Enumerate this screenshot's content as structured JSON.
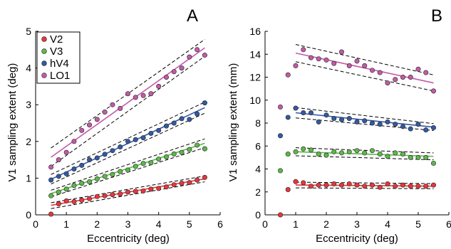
{
  "chart_data": [
    {
      "type": "scatter",
      "panel_label": "A",
      "xlabel": "Eccentricity (deg)",
      "ylabel": "V1 sampling extent (deg)",
      "xlim": [
        0,
        6
      ],
      "ylim": [
        0,
        5
      ],
      "xticks": [
        0,
        1,
        2,
        3,
        4,
        5,
        6
      ],
      "yticks": [
        0,
        1,
        2,
        3,
        4,
        5
      ],
      "legend_position": "top-left",
      "series": [
        {
          "name": "V2",
          "color": "#e8363c",
          "x": [
            0.5,
            0.75,
            1.0,
            1.25,
            1.5,
            1.75,
            2.0,
            2.25,
            2.5,
            2.75,
            3.0,
            3.25,
            3.5,
            3.75,
            4.0,
            4.25,
            4.5,
            4.75,
            5.0,
            5.25,
            5.5
          ],
          "y": [
            0.02,
            0.3,
            0.38,
            0.36,
            0.4,
            0.44,
            0.5,
            0.52,
            0.55,
            0.57,
            0.62,
            0.64,
            0.65,
            0.7,
            0.72,
            0.76,
            0.82,
            0.86,
            0.88,
            0.95,
            1.02
          ],
          "fit": {
            "x": [
              0.5,
              5.5
            ],
            "y": [
              0.26,
              0.98
            ]
          },
          "ci_upper": {
            "x": [
              0.5,
              5.5
            ],
            "y": [
              0.33,
              1.06
            ]
          },
          "ci_lower": {
            "x": [
              0.5,
              5.5
            ],
            "y": [
              0.17,
              0.9
            ]
          }
        },
        {
          "name": "V3",
          "color": "#5cb84a",
          "x": [
            0.5,
            0.75,
            1.0,
            1.25,
            1.5,
            1.75,
            2.0,
            2.25,
            2.5,
            2.75,
            3.0,
            3.25,
            3.5,
            3.75,
            4.0,
            4.25,
            4.5,
            4.75,
            5.0,
            5.25,
            5.5
          ],
          "y": [
            0.52,
            0.62,
            0.7,
            0.8,
            0.86,
            0.9,
            0.98,
            1.05,
            1.1,
            1.18,
            1.22,
            1.32,
            1.4,
            1.42,
            1.52,
            1.58,
            1.66,
            1.7,
            1.78,
            1.9,
            1.8
          ],
          "fit": {
            "x": [
              0.5,
              5.5
            ],
            "y": [
              0.58,
              1.95
            ]
          },
          "ci_upper": {
            "x": [
              0.5,
              5.5
            ],
            "y": [
              0.67,
              2.07
            ]
          },
          "ci_lower": {
            "x": [
              0.5,
              5.5
            ],
            "y": [
              0.49,
              1.83
            ]
          }
        },
        {
          "name": "hV4",
          "color": "#3459a3",
          "x": [
            0.5,
            0.75,
            1.0,
            1.25,
            1.5,
            1.75,
            2.0,
            2.25,
            2.5,
            2.75,
            3.0,
            3.25,
            3.5,
            3.75,
            4.0,
            4.25,
            4.5,
            4.75,
            5.0,
            5.25,
            5.5
          ],
          "y": [
            0.95,
            1.05,
            1.12,
            1.25,
            1.35,
            1.5,
            1.55,
            1.65,
            1.75,
            1.85,
            2.0,
            2.05,
            2.1,
            2.22,
            2.3,
            2.42,
            2.5,
            2.62,
            2.6,
            2.75,
            3.05
          ],
          "fit": {
            "x": [
              0.5,
              5.5
            ],
            "y": [
              0.97,
              2.92
            ]
          },
          "ci_upper": {
            "x": [
              0.5,
              5.5
            ],
            "y": [
              1.1,
              3.07
            ]
          },
          "ci_lower": {
            "x": [
              0.5,
              5.5
            ],
            "y": [
              0.84,
              2.77
            ]
          }
        },
        {
          "name": "LO1",
          "color": "#c35ba7",
          "x": [
            0.5,
            0.75,
            1.0,
            1.25,
            1.5,
            1.75,
            2.0,
            2.25,
            2.5,
            2.75,
            3.0,
            3.25,
            3.5,
            3.75,
            4.0,
            4.25,
            4.5,
            4.75,
            5.0,
            5.25,
            5.5
          ],
          "y": [
            1.3,
            1.5,
            1.7,
            2.0,
            2.3,
            2.45,
            2.6,
            2.8,
            3.0,
            2.9,
            3.3,
            3.2,
            3.25,
            3.3,
            3.5,
            3.75,
            3.9,
            4.0,
            4.3,
            4.5,
            4.35
          ],
          "fit": {
            "x": [
              0.5,
              5.5
            ],
            "y": [
              1.57,
              4.55
            ]
          },
          "ci_upper": {
            "x": [
              0.5,
              5.5
            ],
            "y": [
              1.82,
              4.78
            ]
          },
          "ci_lower": {
            "x": [
              0.5,
              5.5
            ],
            "y": [
              1.32,
              4.32
            ]
          }
        }
      ]
    },
    {
      "type": "scatter",
      "panel_label": "B",
      "xlabel": "Eccentricity (deg)",
      "ylabel": "V1 sampling extent (mm)",
      "xlim": [
        0,
        6
      ],
      "ylim": [
        0,
        16
      ],
      "xticks": [
        0,
        1,
        2,
        3,
        4,
        5,
        6
      ],
      "yticks": [
        0,
        2,
        4,
        6,
        8,
        10,
        12,
        14,
        16
      ],
      "series": [
        {
          "name": "V2",
          "color": "#e8363c",
          "x": [
            0.5,
            0.75,
            1.0,
            1.25,
            1.5,
            1.75,
            2.0,
            2.25,
            2.5,
            2.75,
            3.0,
            3.25,
            3.5,
            3.75,
            4.0,
            4.25,
            4.5,
            4.75,
            5.0,
            5.25,
            5.5
          ],
          "y": [
            0.0,
            2.2,
            2.9,
            2.8,
            2.5,
            2.6,
            2.6,
            2.7,
            2.6,
            2.7,
            2.6,
            2.5,
            2.6,
            2.4,
            2.7,
            2.5,
            2.6,
            2.5,
            2.5,
            2.5,
            2.6
          ],
          "fit": {
            "x": [
              1.0,
              5.5
            ],
            "y": [
              2.6,
              2.5
            ]
          },
          "ci_upper": {
            "x": [
              1.0,
              5.5
            ],
            "y": [
              2.85,
              2.72
            ]
          },
          "ci_lower": {
            "x": [
              1.0,
              5.5
            ],
            "y": [
              2.35,
              2.28
            ]
          }
        },
        {
          "name": "V3",
          "color": "#5cb84a",
          "x": [
            0.5,
            0.75,
            1.0,
            1.25,
            1.5,
            1.75,
            2.0,
            2.25,
            2.5,
            2.75,
            3.0,
            3.25,
            3.5,
            3.75,
            4.0,
            4.25,
            4.5,
            4.75,
            5.0,
            5.25,
            5.5
          ],
          "y": [
            3.85,
            5.3,
            5.5,
            5.75,
            5.65,
            5.3,
            5.2,
            5.5,
            5.4,
            5.5,
            5.6,
            5.4,
            5.6,
            5.3,
            5.1,
            5.4,
            5.3,
            5.0,
            5.0,
            5.0,
            4.5
          ],
          "fit": {
            "x": [
              1.0,
              5.5
            ],
            "y": [
              5.5,
              5.1
            ]
          },
          "ci_upper": {
            "x": [
              1.0,
              5.5
            ],
            "y": [
              5.85,
              5.4
            ]
          },
          "ci_lower": {
            "x": [
              1.0,
              5.5
            ],
            "y": [
              5.15,
              4.8
            ]
          }
        },
        {
          "name": "hV4",
          "color": "#3459a3",
          "x": [
            0.5,
            0.75,
            1.0,
            1.25,
            1.5,
            1.75,
            2.0,
            2.25,
            2.5,
            2.75,
            3.0,
            3.25,
            3.5,
            3.75,
            4.0,
            4.25,
            4.5,
            4.75,
            5.0,
            5.25,
            5.5
          ],
          "y": [
            6.9,
            8.5,
            9.3,
            8.9,
            8.9,
            8.1,
            8.7,
            8.4,
            8.3,
            8.4,
            8.1,
            8.2,
            8.0,
            7.9,
            8.1,
            7.9,
            7.7,
            7.5,
            7.9,
            7.4,
            7.6
          ],
          "fit": {
            "x": [
              1.0,
              5.5
            ],
            "y": [
              8.9,
              7.65
            ]
          },
          "ci_upper": {
            "x": [
              1.0,
              5.5
            ],
            "y": [
              9.35,
              7.95
            ]
          },
          "ci_lower": {
            "x": [
              1.0,
              5.5
            ],
            "y": [
              8.45,
              7.35
            ]
          }
        },
        {
          "name": "LO1",
          "color": "#c35ba7",
          "x": [
            0.5,
            0.75,
            1.0,
            1.25,
            1.5,
            1.75,
            2.0,
            2.25,
            2.5,
            2.75,
            3.0,
            3.25,
            3.5,
            3.75,
            4.0,
            4.25,
            4.5,
            4.75,
            5.0,
            5.25,
            5.5
          ],
          "y": [
            9.4,
            12.2,
            13.0,
            14.4,
            13.7,
            13.6,
            13.5,
            13.2,
            14.2,
            13.0,
            13.4,
            13.0,
            12.6,
            12.4,
            11.5,
            11.8,
            12.0,
            12.0,
            12.7,
            12.4,
            10.8
          ],
          "fit": {
            "x": [
              1.0,
              5.5
            ],
            "y": [
              14.1,
              11.5
            ]
          },
          "ci_upper": {
            "x": [
              1.0,
              5.5
            ],
            "y": [
              14.85,
              12.2
            ]
          },
          "ci_lower": {
            "x": [
              1.0,
              5.5
            ],
            "y": [
              13.35,
              10.8
            ]
          }
        }
      ]
    }
  ]
}
